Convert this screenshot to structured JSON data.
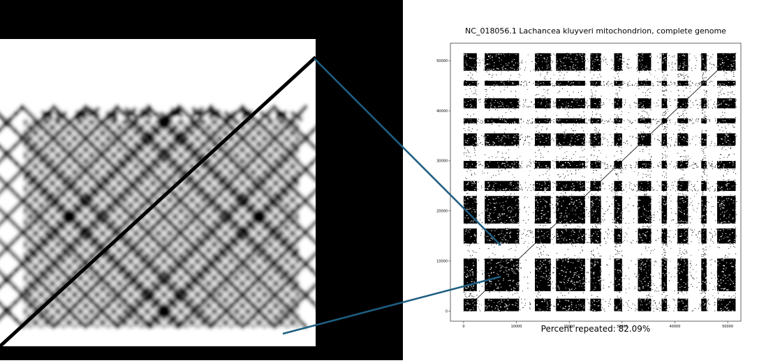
{
  "chart_data": {
    "type": "scatter",
    "subtype": "dot-plot self-similarity matrix",
    "title": "NC_018056.1 Lachancea kluyveri mitochondrion, complete genome",
    "caption": "Percent repeated: 82.09%",
    "xlabel": "",
    "ylabel": "",
    "xlim": [
      -2500,
      52500
    ],
    "ylim": [
      -2000,
      53500
    ],
    "x_ticks": [
      0,
      10000,
      20000,
      30000,
      40000,
      50000
    ],
    "y_ticks": [
      0,
      10000,
      20000,
      30000,
      40000,
      50000
    ],
    "genome_length": 51600,
    "grid": false,
    "dense_bands": [
      {
        "start": 0,
        "end": 2500
      },
      {
        "start": 4000,
        "end": 10500
      },
      {
        "start": 13500,
        "end": 16500
      },
      {
        "start": 17500,
        "end": 23000
      },
      {
        "start": 24000,
        "end": 26000
      },
      {
        "start": 28500,
        "end": 30000
      },
      {
        "start": 33000,
        "end": 35500
      },
      {
        "start": 37500,
        "end": 38500
      },
      {
        "start": 40500,
        "end": 42500
      },
      {
        "start": 45000,
        "end": 46000
      },
      {
        "start": 48000,
        "end": 51500
      }
    ],
    "inset": {
      "description_visible": false,
      "region_x": [
        7000,
        10000
      ],
      "region_y": [
        7000,
        11000
      ]
    }
  },
  "colors": {
    "connector": "#1e5f82",
    "marks": "#000000",
    "background": "#ffffff",
    "panel_bg": "#000000"
  }
}
